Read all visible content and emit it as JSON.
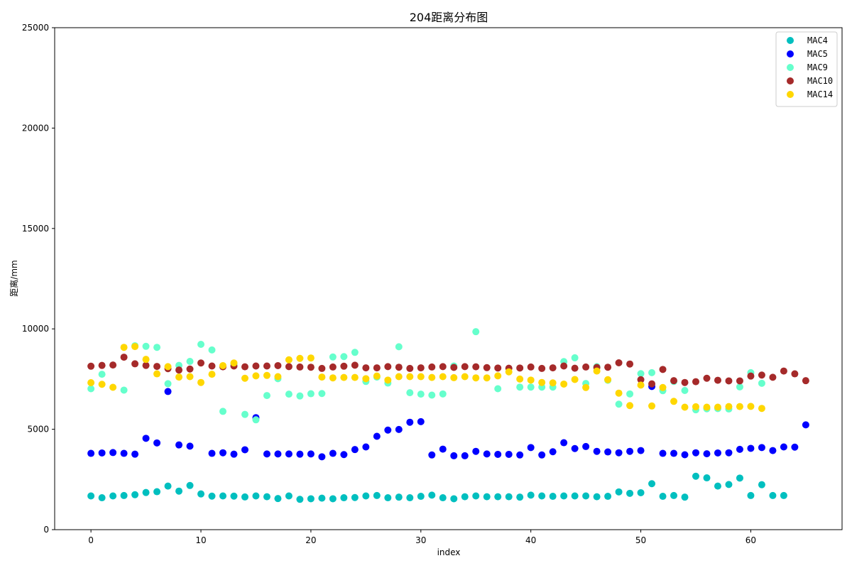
{
  "chart_data": {
    "type": "scatter",
    "title": "204距离分布图",
    "xlabel": "index",
    "ylabel": "距离/mm",
    "xlim": [
      -3.3,
      68.3
    ],
    "ylim": [
      0,
      25000
    ],
    "xticks": [
      0,
      10,
      20,
      30,
      40,
      50,
      60
    ],
    "yticks": [
      0,
      5000,
      10000,
      15000,
      20000,
      25000
    ],
    "grid": false,
    "legend_position": "top-right",
    "series": [
      {
        "name": "MAC4",
        "color": "#00bfbf",
        "x": [
          0,
          1,
          2,
          3,
          4,
          5,
          6,
          7,
          8,
          9,
          10,
          11,
          12,
          13,
          14,
          15,
          16,
          17,
          18,
          19,
          20,
          21,
          22,
          23,
          24,
          25,
          26,
          27,
          28,
          29,
          30,
          31,
          32,
          33,
          34,
          35,
          36,
          37,
          38,
          39,
          40,
          41,
          42,
          43,
          44,
          45,
          46,
          47,
          48,
          49,
          50,
          51,
          52,
          53,
          54,
          55,
          56,
          57,
          58,
          59,
          60,
          61,
          62,
          63
        ],
        "y": [
          1680,
          1590,
          1680,
          1700,
          1740,
          1850,
          1890,
          2170,
          1920,
          2200,
          1780,
          1670,
          1680,
          1670,
          1630,
          1680,
          1640,
          1550,
          1680,
          1510,
          1540,
          1570,
          1540,
          1590,
          1600,
          1680,
          1700,
          1590,
          1620,
          1590,
          1660,
          1720,
          1590,
          1540,
          1640,
          1680,
          1640,
          1640,
          1640,
          1620,
          1720,
          1680,
          1660,
          1680,
          1680,
          1680,
          1640,
          1660,
          1880,
          1810,
          1840,
          2290,
          1660,
          1700,
          1620,
          2660,
          2580,
          2170,
          2250,
          2570,
          1700,
          2240,
          1700,
          1700
        ]
      },
      {
        "name": "MAC5",
        "color": "#0000ff",
        "x": [
          0,
          1,
          2,
          3,
          4,
          5,
          6,
          7,
          8,
          9,
          11,
          12,
          13,
          14,
          15,
          16,
          17,
          18,
          19,
          20,
          21,
          22,
          23,
          24,
          25,
          26,
          27,
          28,
          29,
          30,
          31,
          32,
          33,
          34,
          35,
          36,
          37,
          38,
          39,
          40,
          41,
          42,
          43,
          44,
          45,
          46,
          47,
          48,
          49,
          50,
          51,
          52,
          53,
          54,
          55,
          56,
          57,
          58,
          59,
          60,
          61,
          62,
          63,
          64,
          65
        ],
        "y": [
          3800,
          3820,
          3840,
          3800,
          3760,
          4550,
          4320,
          6880,
          4220,
          4160,
          3800,
          3830,
          3760,
          3980,
          5580,
          3770,
          3770,
          3770,
          3760,
          3770,
          3630,
          3800,
          3740,
          3990,
          4120,
          4650,
          4960,
          4990,
          5350,
          5380,
          3720,
          4010,
          3680,
          3680,
          3900,
          3770,
          3750,
          3750,
          3720,
          4090,
          3720,
          3880,
          4330,
          4040,
          4140,
          3900,
          3870,
          3830,
          3900,
          3940,
          7130,
          3800,
          3800,
          3730,
          3830,
          3780,
          3820,
          3830,
          4000,
          4050,
          4090,
          3940,
          4120,
          4110,
          5220
        ]
      },
      {
        "name": "MAC9",
        "color": "#66ffcc",
        "x": [
          0,
          1,
          3,
          4,
          5,
          6,
          7,
          8,
          9,
          10,
          11,
          12,
          13,
          14,
          15,
          16,
          17,
          18,
          19,
          20,
          21,
          22,
          23,
          24,
          25,
          26,
          27,
          28,
          29,
          30,
          31,
          32,
          33,
          35,
          37,
          39,
          40,
          41,
          42,
          43,
          44,
          45,
          46,
          47,
          48,
          49,
          50,
          51,
          52,
          53,
          54,
          55,
          56,
          57,
          58,
          59,
          60,
          61
        ],
        "y": [
          7020,
          7740,
          6950,
          9160,
          9130,
          9080,
          7270,
          8180,
          8380,
          9230,
          8950,
          5890,
          8250,
          5740,
          5470,
          6680,
          7520,
          6750,
          6660,
          6770,
          6780,
          8600,
          8620,
          8830,
          7380,
          7600,
          7300,
          9110,
          6820,
          6750,
          6700,
          6760,
          8150,
          9860,
          7020,
          7100,
          7100,
          7100,
          7100,
          8370,
          8560,
          7280,
          8120,
          7440,
          6250,
          6760,
          7770,
          7820,
          6920,
          7380,
          6930,
          5970,
          6020,
          6030,
          6010,
          7110,
          7820,
          7290
        ]
      },
      {
        "name": "MAC10",
        "color": "#a52a2a",
        "x": [
          0,
          1,
          2,
          3,
          4,
          5,
          6,
          7,
          8,
          9,
          10,
          11,
          12,
          13,
          14,
          15,
          16,
          17,
          18,
          19,
          20,
          21,
          22,
          23,
          24,
          25,
          26,
          27,
          28,
          29,
          30,
          31,
          32,
          33,
          34,
          35,
          36,
          37,
          38,
          39,
          40,
          41,
          42,
          43,
          44,
          45,
          46,
          47,
          48,
          49,
          50,
          51,
          52,
          53,
          54,
          55,
          56,
          57,
          58,
          59,
          60,
          61,
          62,
          63,
          64,
          65
        ],
        "y": [
          8140,
          8180,
          8200,
          8590,
          8260,
          8180,
          8130,
          8020,
          7950,
          8000,
          8300,
          8150,
          8110,
          8150,
          8110,
          8150,
          8150,
          8170,
          8120,
          8100,
          8090,
          8030,
          8100,
          8140,
          8190,
          8060,
          8060,
          8120,
          8090,
          8030,
          8060,
          8100,
          8120,
          8080,
          8120,
          8110,
          8070,
          8050,
          8040,
          8050,
          8100,
          8030,
          8060,
          8150,
          8040,
          8100,
          8080,
          8090,
          8310,
          8250,
          7470,
          7260,
          7980,
          7420,
          7330,
          7370,
          7540,
          7440,
          7410,
          7410,
          7650,
          7700,
          7590,
          7900,
          7760,
          7420
        ]
      },
      {
        "name": "MAC14",
        "color": "#ffd700",
        "x": [
          0,
          1,
          2,
          3,
          4,
          5,
          6,
          7,
          8,
          9,
          10,
          11,
          12,
          13,
          14,
          15,
          16,
          17,
          18,
          19,
          20,
          21,
          22,
          23,
          24,
          25,
          26,
          27,
          28,
          29,
          30,
          31,
          32,
          33,
          34,
          35,
          36,
          37,
          38,
          39,
          40,
          41,
          42,
          43,
          44,
          45,
          46,
          47,
          48,
          49,
          50,
          51,
          52,
          53,
          54,
          55,
          56,
          57,
          58,
          59,
          60,
          61
        ],
        "y": [
          7320,
          7240,
          7090,
          9080,
          9120,
          8480,
          7760,
          8120,
          7600,
          7620,
          7330,
          7740,
          8170,
          8300,
          7540,
          7660,
          7680,
          7620,
          8460,
          8530,
          8550,
          7600,
          7560,
          7580,
          7580,
          7520,
          7650,
          7450,
          7620,
          7620,
          7620,
          7580,
          7620,
          7570,
          7620,
          7560,
          7560,
          7660,
          7860,
          7500,
          7450,
          7330,
          7310,
          7250,
          7480,
          7080,
          7900,
          7470,
          6800,
          6180,
          7200,
          6160,
          7080,
          6390,
          6100,
          6120,
          6100,
          6100,
          6130,
          6130,
          6140,
          6040
        ]
      }
    ]
  }
}
